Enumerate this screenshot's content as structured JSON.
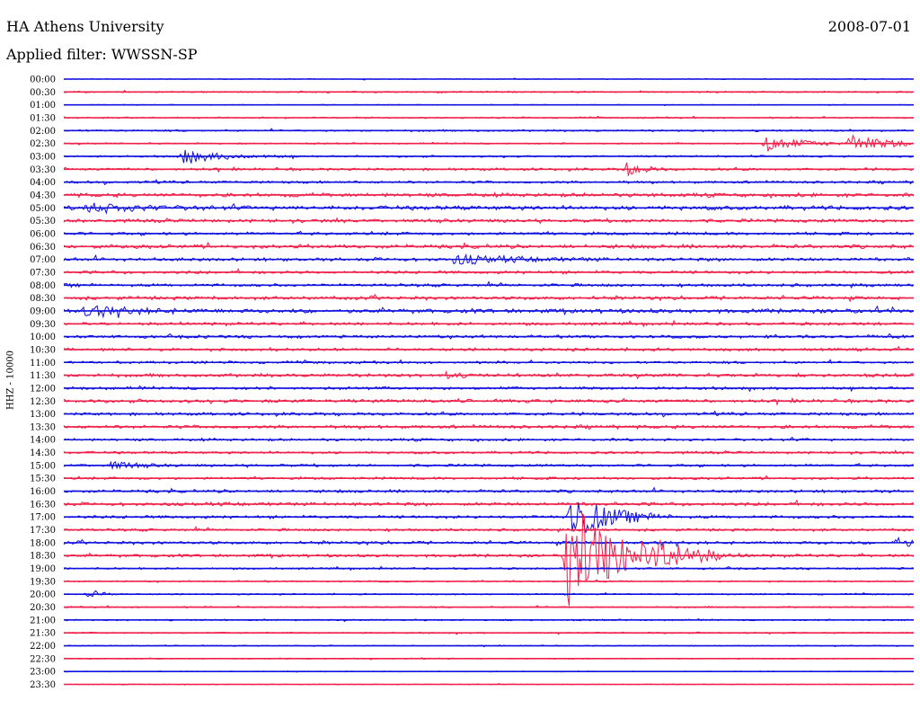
{
  "header": {
    "station": "HA Athens University",
    "date": "2008-07-01",
    "filter_label": "Applied filter: WWSSN-SP",
    "channel_label": "HHZ - 10000"
  },
  "colors": {
    "trace_a": "#1010e0",
    "trace_b": "#f0204a",
    "background": "#ffffff"
  },
  "chart_data": {
    "type": "line",
    "title": "HA Athens University",
    "subtitle": "Applied filter: WWSSN-SP",
    "ylabel": "HHZ - 10000",
    "xlabel": "",
    "rows": [
      "00:00",
      "00:30",
      "01:00",
      "01:30",
      "02:00",
      "02:30",
      "03:00",
      "03:30",
      "04:00",
      "04:30",
      "05:00",
      "05:30",
      "06:00",
      "06:30",
      "07:00",
      "07:30",
      "08:00",
      "08:30",
      "09:00",
      "09:30",
      "10:00",
      "10:30",
      "11:00",
      "11:30",
      "12:00",
      "12:30",
      "13:00",
      "13:30",
      "14:00",
      "14:30",
      "15:00",
      "15:30",
      "16:00",
      "16:30",
      "17:00",
      "17:30",
      "18:00",
      "18:30",
      "19:00",
      "19:30",
      "20:00",
      "20:30",
      "21:00",
      "21:30",
      "22:00",
      "22:30",
      "23:00",
      "23:30"
    ],
    "row_noise": [
      0.4,
      0.7,
      0.4,
      0.7,
      0.9,
      0.7,
      0.9,
      1.2,
      1.2,
      1.8,
      2.0,
      1.6,
      1.4,
      1.8,
      1.6,
      1.4,
      1.4,
      1.6,
      2.0,
      1.4,
      1.4,
      1.4,
      1.2,
      1.6,
      1.4,
      1.6,
      1.4,
      1.6,
      1.2,
      1.2,
      1.2,
      1.2,
      1.4,
      1.6,
      1.4,
      1.2,
      1.4,
      1.4,
      0.9,
      0.7,
      0.7,
      0.7,
      0.7,
      0.7,
      0.5,
      0.5,
      0.4,
      0.4
    ],
    "events": [
      {
        "row": "02:30",
        "minute": 24.8,
        "amplitude": 9,
        "duration": 1.2
      },
      {
        "row": "02:30",
        "minute": 27.8,
        "amplitude": 9,
        "duration": 1.4
      },
      {
        "row": "03:00",
        "minute": 4.2,
        "amplitude": 7,
        "duration": 1.4
      },
      {
        "row": "03:30",
        "minute": 19.9,
        "amplitude": 8,
        "duration": 0.5
      },
      {
        "row": "05:00",
        "minute": 0.9,
        "amplitude": 5,
        "duration": 1.5
      },
      {
        "row": "07:00",
        "minute": 13.8,
        "amplitude": 5,
        "duration": 1.8
      },
      {
        "row": "09:00",
        "minute": 0.8,
        "amplitude": 5,
        "duration": 1.5
      },
      {
        "row": "11:30",
        "minute": 13.5,
        "amplitude": 4,
        "duration": 0.4
      },
      {
        "row": "15:00",
        "minute": 1.7,
        "amplitude": 4,
        "duration": 0.8
      },
      {
        "row": "17:00",
        "minute": 17.9,
        "amplitude": 28,
        "duration": 1.2
      },
      {
        "row": "18:00",
        "minute": 29.4,
        "amplitude": 6,
        "duration": 0.6
      },
      {
        "row": "18:30",
        "minute": 17.8,
        "amplitude": 60,
        "duration": 1.8
      },
      {
        "row": "18:30",
        "minute": 20.9,
        "amplitude": 7,
        "duration": 1.2
      },
      {
        "row": "20:00",
        "minute": 0.9,
        "amplitude": 5,
        "duration": 0.4
      }
    ]
  }
}
